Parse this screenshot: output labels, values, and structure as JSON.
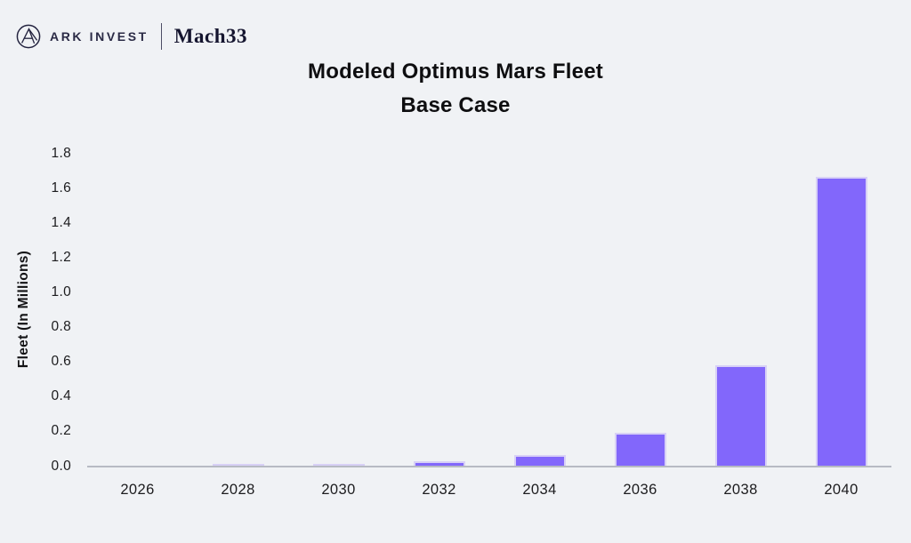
{
  "header": {
    "brand_primary": "ARK INVEST",
    "brand_secondary": "Mach33"
  },
  "chart_data": {
    "type": "bar",
    "title": "Modeled Optimus Mars Fleet Base Case",
    "title_line1": "Modeled Optimus Mars Fleet",
    "title_line2": "Base Case",
    "ylabel": "Fleet (In Millions)",
    "xlabel": "",
    "categories": [
      "2026",
      "2028",
      "2030",
      "2032",
      "2034",
      "2036",
      "2038",
      "2040"
    ],
    "values": [
      0.0,
      0.01,
      0.01,
      0.025,
      0.06,
      0.19,
      0.58,
      1.66
    ],
    "ylim": [
      0,
      1.8
    ],
    "ytick_step": 0.2,
    "yticks": [
      "0.0",
      "0.2",
      "0.4",
      "0.6",
      "0.8",
      "1.0",
      "1.2",
      "1.4",
      "1.6",
      "1.8"
    ],
    "grid": "off",
    "legend": "none",
    "colors": {
      "bar_fill": "#8267fb",
      "bar_border": "#d8d1f6",
      "axis_line": "#b7bac3",
      "background": "#f0f2f5",
      "text": "#1c1c1e",
      "brand_navy": "#23233f"
    }
  }
}
